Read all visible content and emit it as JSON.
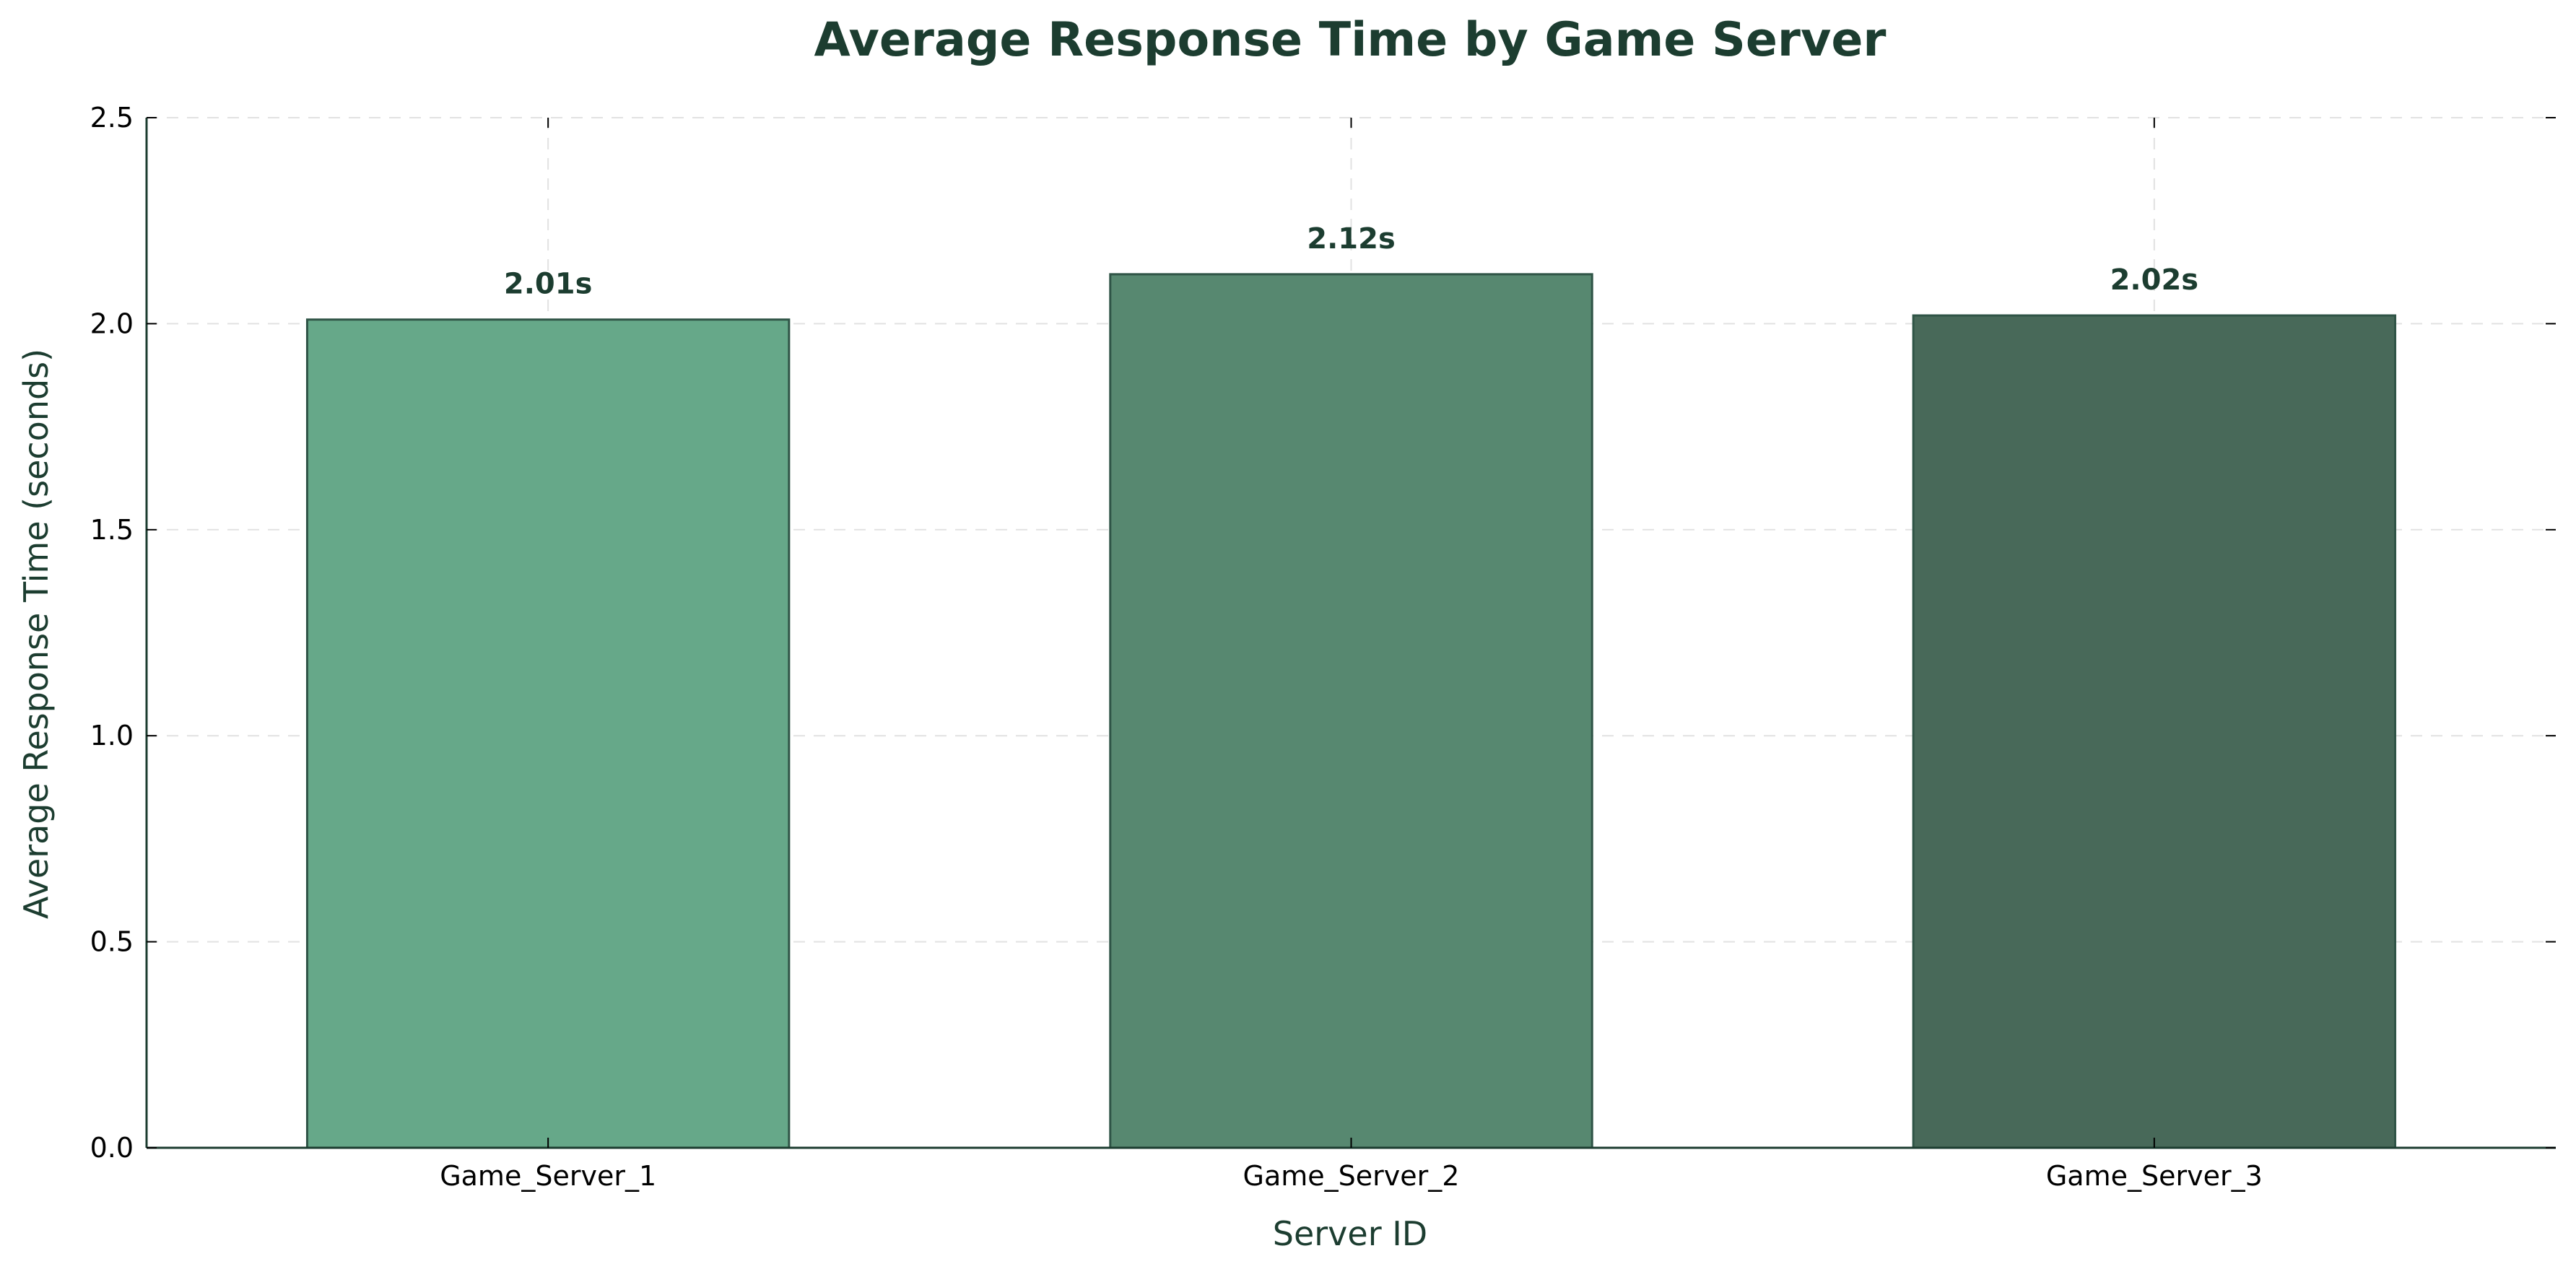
{
  "chart_data": {
    "type": "bar",
    "title": "Average Response Time by Game Server",
    "xlabel": "Server ID",
    "ylabel": "Average Response Time (seconds)",
    "categories": [
      "Game_Server_1",
      "Game_Server_2",
      "Game_Server_3"
    ],
    "values": [
      2.01,
      2.12,
      2.02
    ],
    "data_labels": [
      "2.01s",
      "2.12s",
      "2.02s"
    ],
    "ylim": [
      0,
      2.5
    ],
    "yticks": [
      0.0,
      0.5,
      1.0,
      1.5,
      2.0,
      2.5
    ],
    "ytick_labels": [
      "0.0",
      "0.5",
      "1.0",
      "1.5",
      "2.0",
      "2.5"
    ],
    "grid": true,
    "grid_style": "dashed",
    "colors": {
      "bars": [
        "#66a889",
        "#578870",
        "#486959"
      ],
      "bar_edge": "#2f5446",
      "title": "#1c3d30",
      "axis_label": "#1c3d30",
      "data_label": "#1c3d30",
      "axis": "#1c3d30",
      "grid": "#e2e2e2"
    }
  }
}
